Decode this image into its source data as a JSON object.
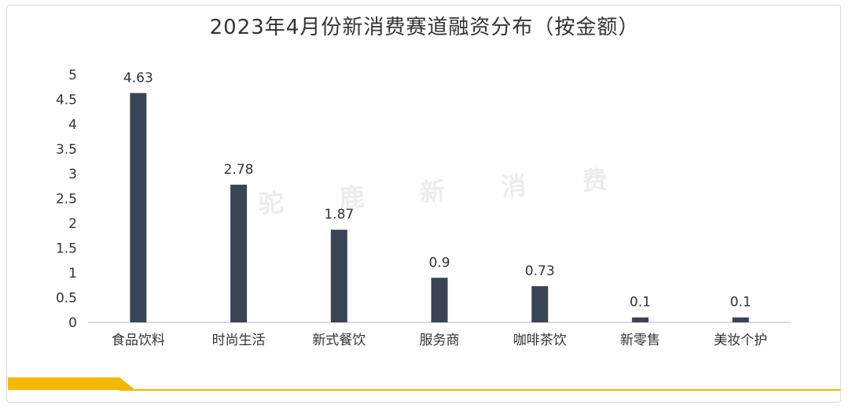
{
  "title": "2023年4月份新消费赛道融资分布（按金额）",
  "watermark": "驼 鹿 新 消 费",
  "colors": {
    "bar": "#3b4454",
    "accent": "#f5b800",
    "axis": "#d0d0d0",
    "text": "#333333"
  },
  "chart_data": {
    "type": "bar",
    "title": "2023年4月份新消费赛道融资分布（按金额）",
    "categories": [
      "食品饮料",
      "时尚生活",
      "新式餐饮",
      "服务商",
      "咖啡茶饮",
      "新零售",
      "美妆个护"
    ],
    "values": [
      4.63,
      2.78,
      1.87,
      0.9,
      0.73,
      0.1,
      0.1
    ],
    "data_labels": [
      "4.63",
      "2.78",
      "1.87",
      "0.9",
      "0.73",
      "0.1",
      "0.1"
    ],
    "ylim": [
      0,
      5
    ],
    "yticks": [
      "0",
      "0.5",
      "1",
      "1.5",
      "2",
      "2.5",
      "3",
      "3.5",
      "4",
      "4.5",
      "5"
    ],
    "xlabel": "",
    "ylabel": "",
    "grid": false,
    "legend": "none"
  }
}
